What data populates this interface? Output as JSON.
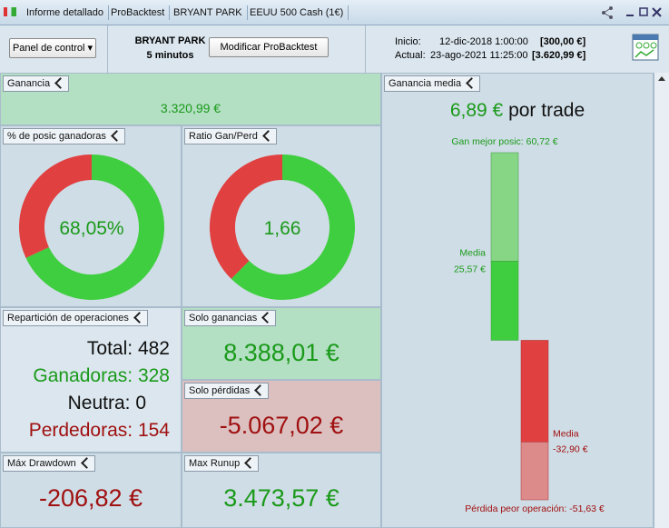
{
  "window": {
    "tabs": [
      "Informe detallado",
      "ProBacktest",
      "BRYANT PARK",
      "EEUU 500 Cash (1€)"
    ]
  },
  "toolbar": {
    "panel_button": "Panel de control",
    "system": "BRYANT PARK",
    "timeframe": "5 minutos",
    "modify_button": "Modificar ProBacktest",
    "start_label": "Inicio:",
    "start_date": "12-dic-2018 1:00:00",
    "start_value": "[300,00 €]",
    "current_label": "Actual:",
    "current_date": "23-ago-2021 11:25:00",
    "current_value": "[3.620,99 €]"
  },
  "panels": {
    "gain": {
      "title": "Ganancia",
      "value": "3.320,99 €"
    },
    "win_pct": {
      "title": "% de posic ganadoras",
      "value": {
        "value": 68.05,
        "label": "68,05%"
      }
    },
    "ratio": {
      "title": "Ratio Gan/Perd",
      "value": {
        "value": 1.66,
        "label": "1,66"
      }
    },
    "distribution": {
      "title": "Repartición de operaciones",
      "rows": [
        [
          "Total:",
          "482"
        ],
        [
          "Ganadoras:",
          "328"
        ],
        [
          "Neutra:",
          "0"
        ],
        [
          "Perdedoras:",
          "154"
        ]
      ]
    },
    "gains_only": {
      "title": "Solo ganancias",
      "value": "8.388,01 €"
    },
    "losses_only": {
      "title": "Solo pérdidas",
      "value": "-5.067,02 €"
    },
    "max_drawdown": {
      "title": "Máx Drawdown",
      "value": "-206,82 €"
    },
    "max_runup": {
      "title": "Max Runup",
      "value": "3.473,57 €"
    },
    "avg_gain": {
      "title": "Ganancia media",
      "headline": "6,89 €",
      "suffix": "por trade",
      "best": {
        "value": 60.72,
        "label": "Gan mejor posic: 60,72 €"
      },
      "mean_gain_label": "Media",
      "mean_gain": {
        "value": 25.57,
        "label": "25,57 €"
      },
      "mean_loss_label": "Media",
      "mean_loss": {
        "value": -32.9,
        "label": "-32,90 €"
      },
      "worst": {
        "value": -51.63,
        "label": "Pérdida peor operación: -51,63 €"
      }
    }
  }
}
